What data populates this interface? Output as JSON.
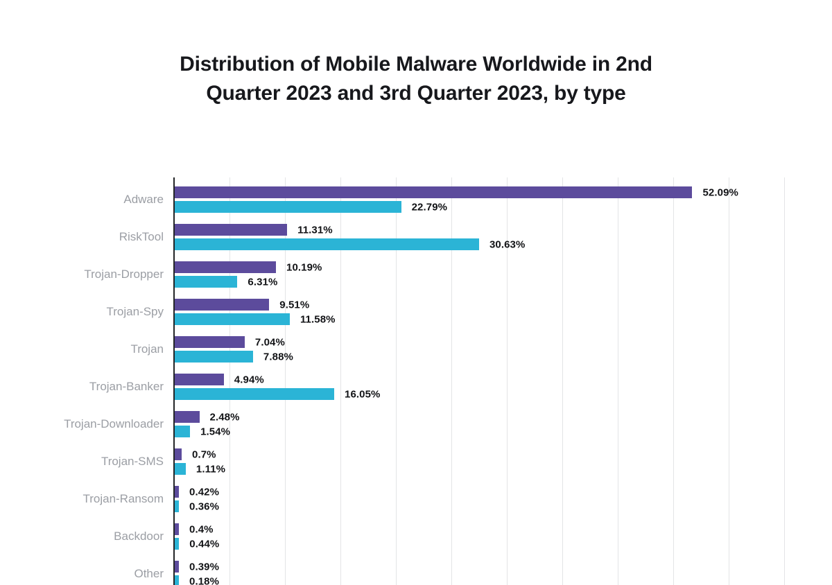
{
  "title_lines": [
    "Distribution of Mobile Malware Worldwide in 2nd",
    "Quarter 2023 and 3rd Quarter 2023, by type"
  ],
  "chart_data": {
    "type": "bar",
    "orientation": "horizontal",
    "title": "Distribution of Mobile Malware Worldwide in 2nd Quarter 2023 and 3rd Quarter 2023, by type",
    "categories": [
      "Adware",
      "RiskTool",
      "Trojan-Dropper",
      "Trojan-Spy",
      "Trojan",
      "Trojan-Banker",
      "Trojan-Downloader",
      "Trojan-SMS",
      "Trojan-Ransom",
      "Backdoor",
      "Other"
    ],
    "series": [
      {
        "name": "2nd Quarter 2023",
        "color": "#5c4b9c",
        "values": [
          52.09,
          11.31,
          10.19,
          9.51,
          7.04,
          4.94,
          2.48,
          0.7,
          0.42,
          0.4,
          0.39
        ],
        "labels": [
          "52.09%",
          "11.31%",
          "10.19%",
          "9.51%",
          "7.04%",
          "4.94%",
          "2.48%",
          "0.7%",
          "0.42%",
          "0.4%",
          "0.39%"
        ]
      },
      {
        "name": "3rd Quarter 2023",
        "color": "#2bb4d6",
        "values": [
          22.79,
          30.63,
          6.31,
          11.58,
          7.88,
          16.05,
          1.54,
          1.11,
          0.36,
          0.44,
          0.18
        ],
        "labels": [
          "22.79%",
          "30.63%",
          "6.31%",
          "11.58%",
          "7.88%",
          "16.05%",
          "1.54%",
          "1.11%",
          "0.36%",
          "0.44%",
          "0.18%"
        ]
      }
    ],
    "value_suffix": "%",
    "xlim": [
      0,
      63.5
    ],
    "grid": "vertical",
    "legend": "none",
    "axis_color": "#222426",
    "gridline_color": "#e3e4e6",
    "category_label_color": "#9b9ea4",
    "value_label_color": "#121316"
  }
}
